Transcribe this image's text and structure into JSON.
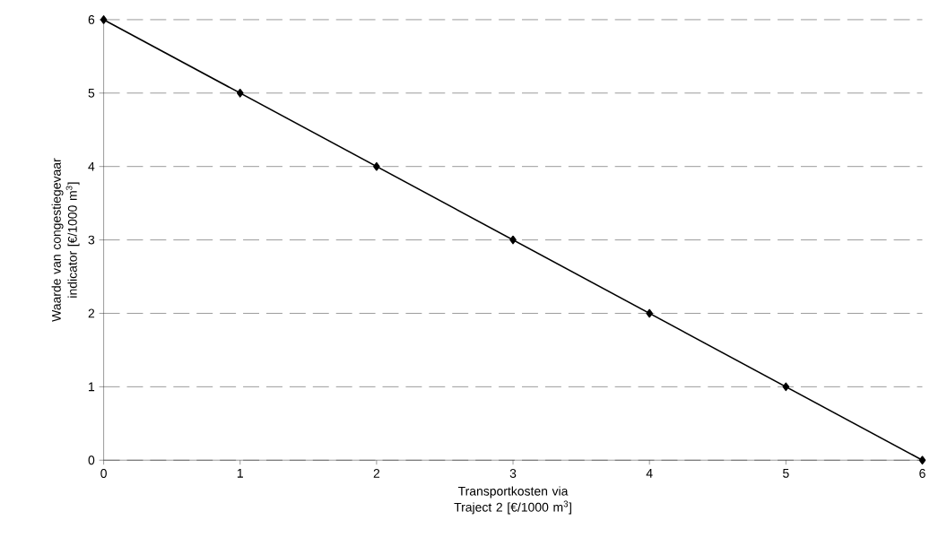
{
  "chart_data": {
    "type": "line",
    "xlabel": "Transportkosten via Traject 2 [€/1000 m$^{3}$]",
    "ylabel": "Waarde van congestiegevaar indicator [€/1000 m$^{3}$]",
    "x": [
      0,
      1,
      2,
      3,
      4,
      5,
      6
    ],
    "series": [
      {
        "color": "#000000",
        "values": [
          6,
          5,
          4,
          3,
          2,
          1,
          0
        ]
      }
    ],
    "xlim": [
      0,
      6
    ],
    "ylim": [
      0,
      6
    ],
    "xticks": [
      0,
      1,
      2,
      3,
      4,
      5,
      6
    ],
    "yticks": [
      0,
      1,
      2,
      3,
      4,
      5,
      6
    ],
    "grid": "y",
    "marker": "diamond",
    "line_style": "solid"
  }
}
